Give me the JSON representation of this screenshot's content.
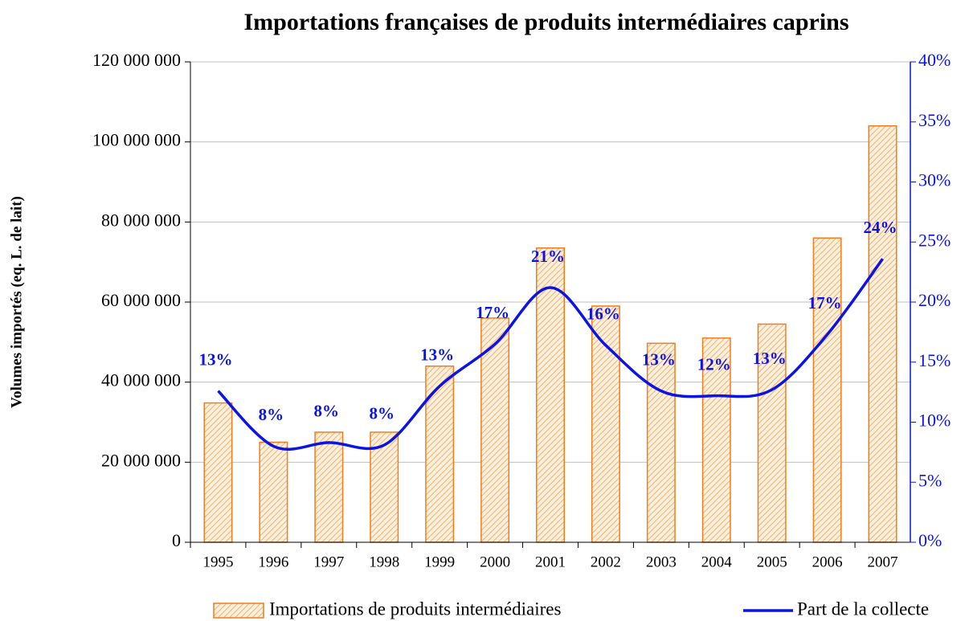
{
  "chart_data": {
    "type": "bar-line",
    "title": "Importations françaises de produits intermédiaires caprins",
    "y_label": "Volumes importés (eq. L. de lait)",
    "categories": [
      "1995",
      "1996",
      "1997",
      "1998",
      "1999",
      "2000",
      "2001",
      "2002",
      "2003",
      "2004",
      "2005",
      "2006",
      "2007"
    ],
    "series": [
      {
        "name": "Importations de produits intermédiaires",
        "type": "bar",
        "color": "#f07d1e",
        "values": [
          34800000,
          25000000,
          27500000,
          27500000,
          44000000,
          56000000,
          73500000,
          59000000,
          49700000,
          51000000,
          54500000,
          76000000,
          104000000
        ]
      },
      {
        "name": "Part de la collecte",
        "type": "line",
        "axis": "y2",
        "color": "#0a14e6",
        "values": [
          12.6,
          8.0,
          8.3,
          8.1,
          13.0,
          16.5,
          21.2,
          16.4,
          12.6,
          12.2,
          12.7,
          17.3,
          23.6
        ],
        "value_labels": [
          "13%",
          "8%",
          "8%",
          "8%",
          "13%",
          "17%",
          "21%",
          "16%",
          "13%",
          "12%",
          "13%",
          "17%",
          "24%"
        ]
      }
    ],
    "ylim": [
      0,
      120000000
    ],
    "yticks": [
      0,
      {
        "value": 20000000,
        "label": "20 000 000"
      },
      {
        "value": 40000000,
        "label": "40 000 000"
      },
      {
        "value": 60000000,
        "label": "60 000 000"
      },
      {
        "value": 80000000,
        "label": "80 000 000"
      },
      {
        "value": 100000000,
        "label": "100 000 000"
      },
      {
        "value": 120000000,
        "label": "120 000 000"
      }
    ],
    "y2lim": [
      0,
      40
    ],
    "y2ticks": [
      {
        "value": 0,
        "label": "0%"
      },
      {
        "value": 5,
        "label": "5%"
      },
      {
        "value": 10,
        "label": "10%"
      },
      {
        "value": 15,
        "label": "15%"
      },
      {
        "value": 20,
        "label": "20%"
      },
      {
        "value": 25,
        "label": "25%"
      },
      {
        "value": 30,
        "label": "30%"
      },
      {
        "value": 35,
        "label": "35%"
      },
      {
        "value": 40,
        "label": "40%"
      }
    ],
    "grid": true,
    "legend": "bottom"
  }
}
